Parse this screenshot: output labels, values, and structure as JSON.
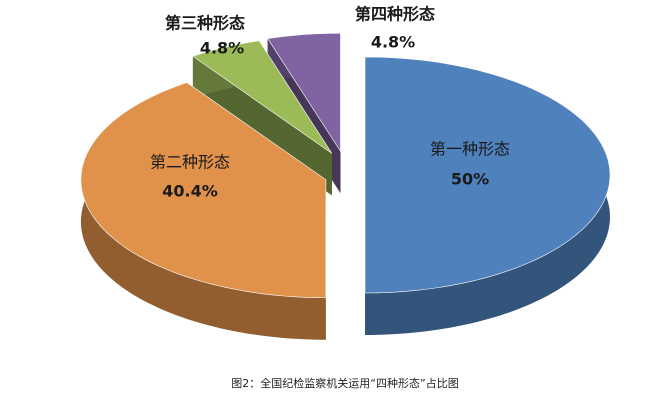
{
  "chart_data": {
    "type": "pie3d",
    "categories": [
      "第一种形态",
      "第二种形态",
      "第三种形态",
      "第四种形态"
    ],
    "values": [
      50,
      40.4,
      4.8,
      4.8
    ],
    "value_labels": [
      "50%",
      "40.4%",
      "4.8%",
      "4.8%"
    ],
    "colors": [
      "#4f81bd",
      "#e0914a",
      "#9bbb59",
      "#8064a2"
    ],
    "caption": "图2：全国纪检监察机关运用“四种形态”占比图"
  }
}
